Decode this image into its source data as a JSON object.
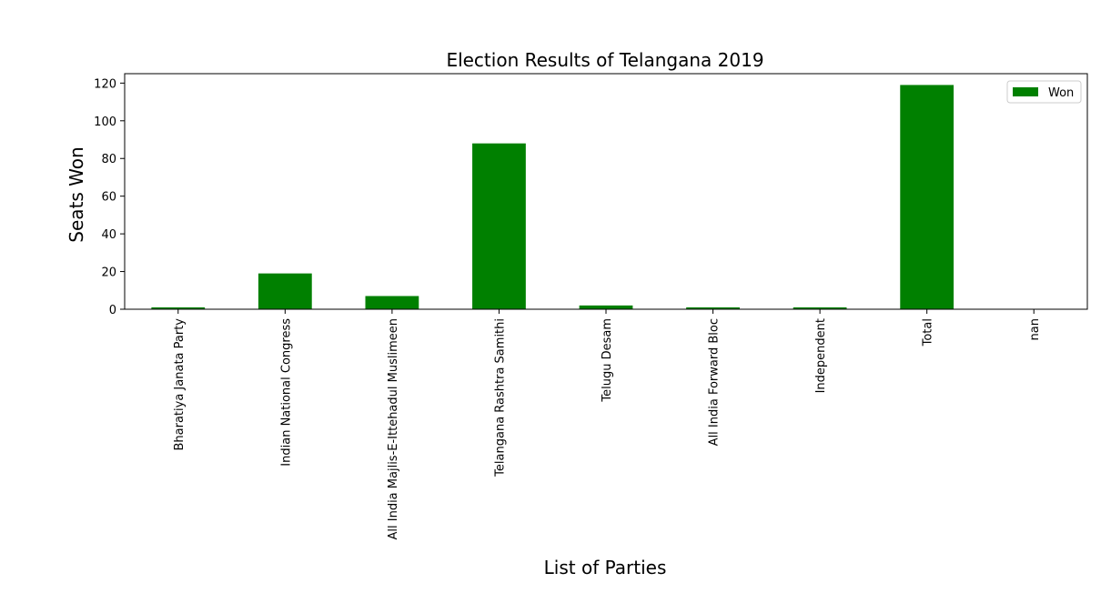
{
  "chart_data": {
    "type": "bar",
    "title": "Election Results of Telangana 2019",
    "xlabel": "List of  Parties",
    "ylabel": "Seats Won",
    "categories": [
      "Bharatiya Janata Party",
      "Indian National Congress",
      "All India Majlis-E-Ittehadul Muslimeen",
      "Telangana Rashtra Samithi",
      "Telugu Desam",
      "All India Forward Bloc",
      "Independent",
      "Total",
      "nan"
    ],
    "series": [
      {
        "name": "Won",
        "values": [
          1,
          19,
          7,
          88,
          2,
          1,
          1,
          119,
          null
        ],
        "color": "#008000"
      }
    ],
    "ylim": [
      0,
      125
    ],
    "yticks": [
      0,
      20,
      40,
      60,
      80,
      100,
      120
    ],
    "grid": false,
    "legend_position": "top-right"
  }
}
